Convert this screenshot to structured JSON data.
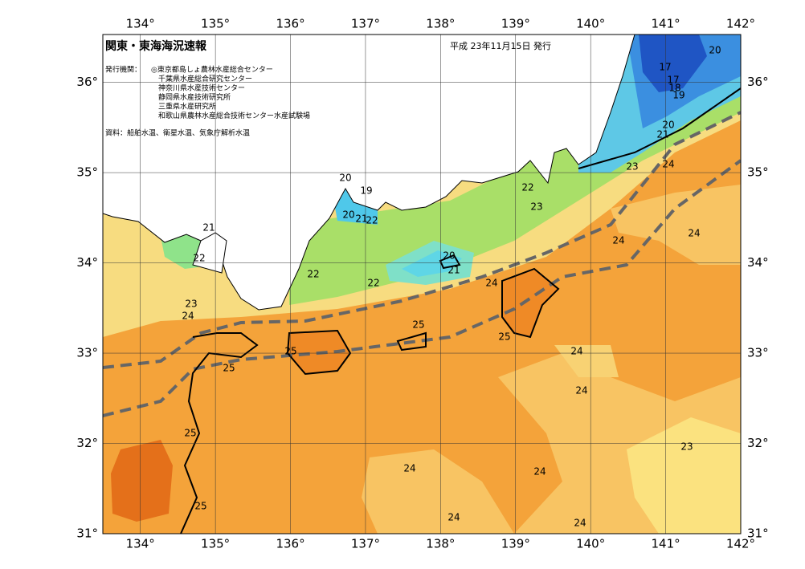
{
  "header": {
    "title": "関東・東海海況速報",
    "date": "平成 23年11月15日 発行"
  },
  "publishers": {
    "label": "発行機関：",
    "items": [
      "◎東京都島しょ農林水産総合センター",
      "千葉県水産総合研究センター",
      "神奈川県水産技術センター",
      "静岡県水産技術研究所",
      "三重県水産研究所",
      "和歌山県農林水産総合技術センター水産試験場"
    ]
  },
  "source": "資料：船舶水温、衛星水温、気象庁解析水温",
  "map": {
    "xlim": [
      133.5,
      142
    ],
    "ylim": [
      31,
      36.53
    ],
    "xticks": [
      {
        "value": 134,
        "label": "134°"
      },
      {
        "value": 135,
        "label": "135°"
      },
      {
        "value": 136,
        "label": "136°"
      },
      {
        "value": 137,
        "label": "137°"
      },
      {
        "value": 138,
        "label": "138°"
      },
      {
        "value": 139,
        "label": "139°"
      },
      {
        "value": 140,
        "label": "140°"
      },
      {
        "value": 141,
        "label": "141°"
      },
      {
        "value": 142,
        "label": "142°"
      }
    ],
    "yticks": [
      {
        "value": 31,
        "label": "31°"
      },
      {
        "value": 32,
        "label": "32°"
      },
      {
        "value": 33,
        "label": "33°"
      },
      {
        "value": 34,
        "label": "34°"
      },
      {
        "value": 35,
        "label": "35°"
      },
      {
        "value": 36,
        "label": "36°"
      }
    ],
    "contour_labels": [
      20,
      17,
      17,
      18,
      19,
      20,
      21,
      23,
      24,
      20,
      19,
      20,
      21,
      22,
      22,
      23,
      21,
      22,
      24,
      24,
      20,
      21,
      22,
      22,
      24,
      23,
      24,
      25,
      25,
      25,
      24,
      25,
      24,
      25,
      23,
      24,
      24,
      25,
      24,
      24
    ]
  }
}
